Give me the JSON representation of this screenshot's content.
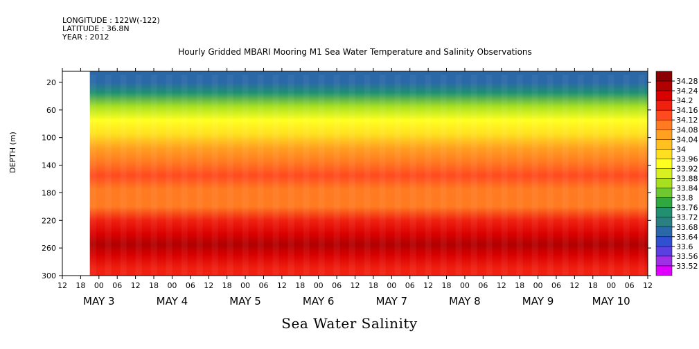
{
  "header": {
    "longitude": "LONGITUDE : 122W(-122)",
    "latitude": "LATITUDE : 36.8N",
    "year": "YEAR : 2012"
  },
  "footer": "Sea Water Salinity",
  "chart_data": {
    "type": "heatmap",
    "title": "Hourly Gridded MBARI Mooring M1 Sea Water Temperature and Salinity Observations",
    "xlabel": "",
    "ylabel": "DEPTH (m)",
    "y_ticks": [
      20,
      60,
      100,
      140,
      180,
      220,
      260,
      300
    ],
    "ylim": [
      300,
      4
    ],
    "x_hour_ticks": [
      "12",
      "18",
      "00",
      "06",
      "12",
      "18",
      "00",
      "06",
      "12",
      "18",
      "00",
      "06",
      "12",
      "18",
      "00",
      "06",
      "12",
      "18",
      "00",
      "06",
      "12",
      "18",
      "00",
      "06",
      "12",
      "18",
      "00",
      "06",
      "12",
      "18",
      "00",
      "06",
      "12"
    ],
    "x_day_labels": [
      "MAY  3",
      "MAY  4",
      "MAY  5",
      "MAY  6",
      "MAY  7",
      "MAY  8",
      "MAY  9",
      "MAY 10"
    ],
    "data_start_hour_index": 1.5,
    "colorbar": {
      "levels": [
        34.28,
        34.24,
        34.2,
        34.16,
        34.12,
        34.08,
        34.04,
        34,
        33.96,
        33.92,
        33.88,
        33.84,
        33.8,
        33.76,
        33.72,
        33.68,
        33.64,
        33.6,
        33.56,
        33.52
      ],
      "colors": [
        "#8b0000",
        "#b00000",
        "#d80000",
        "#f02010",
        "#ff4a20",
        "#ff7a20",
        "#ffa020",
        "#ffc020",
        "#ffe020",
        "#ffff20",
        "#d8f020",
        "#a8e020",
        "#70c830",
        "#30a840",
        "#209070",
        "#2a8080",
        "#2a68a8",
        "#3050d0",
        "#5a40e0",
        "#a030e8",
        "#e000ff"
      ]
    },
    "depth_profile": [
      {
        "depth": 5,
        "value": 33.64
      },
      {
        "depth": 20,
        "value": 33.66
      },
      {
        "depth": 35,
        "value": 33.74
      },
      {
        "depth": 55,
        "value": 33.84
      },
      {
        "depth": 75,
        "value": 33.92
      },
      {
        "depth": 95,
        "value": 33.98
      },
      {
        "depth": 115,
        "value": 34.04
      },
      {
        "depth": 135,
        "value": 34.08
      },
      {
        "depth": 155,
        "value": 34.12
      },
      {
        "depth": 175,
        "value": 34.11
      },
      {
        "depth": 200,
        "value": 34.11
      },
      {
        "depth": 220,
        "value": 34.16
      },
      {
        "depth": 240,
        "value": 34.22
      },
      {
        "depth": 255,
        "value": 34.25
      },
      {
        "depth": 270,
        "value": 34.23
      },
      {
        "depth": 290,
        "value": 34.18
      },
      {
        "depth": 300,
        "value": 34.16
      }
    ]
  }
}
